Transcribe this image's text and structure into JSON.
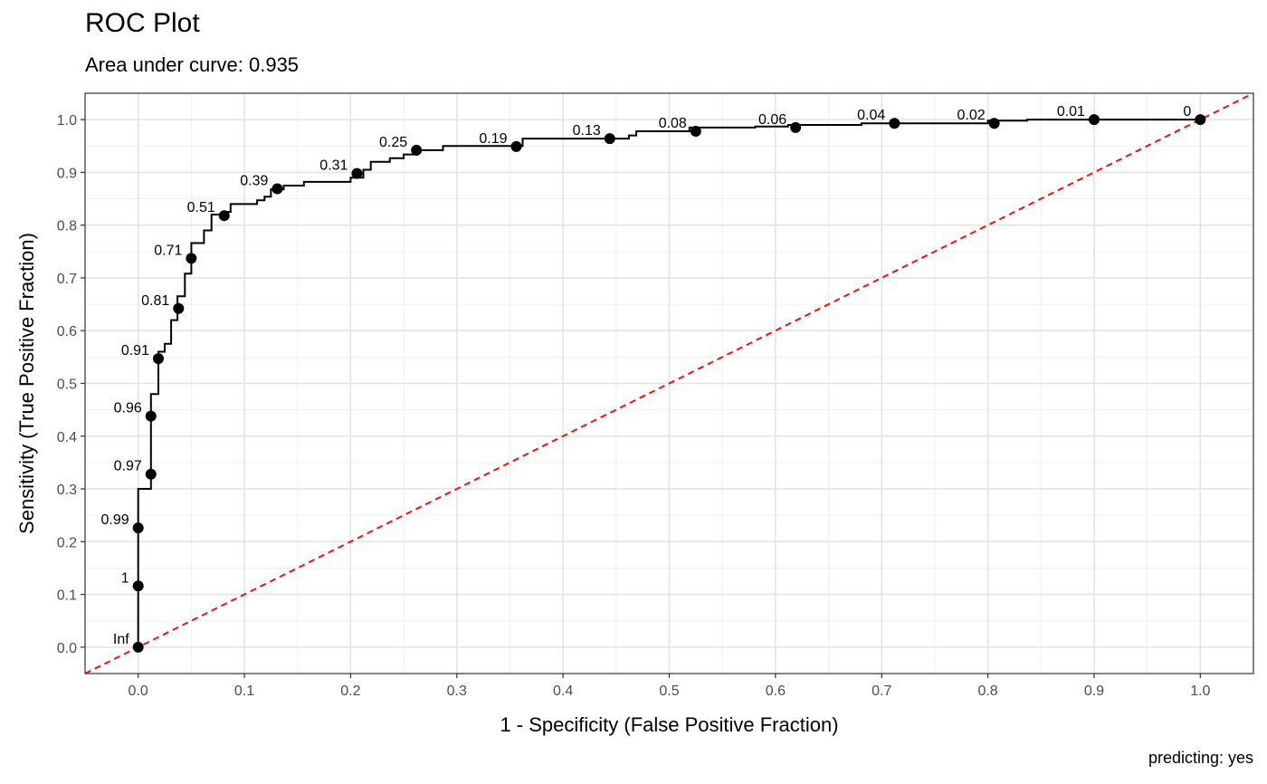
{
  "chart_data": {
    "type": "line",
    "title": "ROC Plot",
    "subtitle": "Area under curve: 0.935",
    "caption": "predicting: yes",
    "xlabel": "1 - Specificity (False Positive Fraction)",
    "ylabel": "Sensitivity (True Positive Fraction)",
    "xlim": [
      -0.05,
      1.05
    ],
    "ylim": [
      -0.05,
      1.05
    ],
    "x_ticks": [
      0.0,
      0.1,
      0.2,
      0.3,
      0.4,
      0.5,
      0.6,
      0.7,
      0.8,
      0.9,
      1.0
    ],
    "x_tick_labels": [
      "0.0",
      "0.1",
      "0.2",
      "0.3",
      "0.4",
      "0.5",
      "0.6",
      "0.7",
      "0.8",
      "0.9",
      "1.0"
    ],
    "y_ticks": [
      0.0,
      0.1,
      0.2,
      0.3,
      0.4,
      0.5,
      0.6,
      0.7,
      0.8,
      0.9,
      1.0
    ],
    "y_tick_labels": [
      "0.0",
      "0.1",
      "0.2",
      "0.3",
      "0.4",
      "0.5",
      "0.6",
      "0.7",
      "0.8",
      "0.9",
      "1.0"
    ],
    "grid": true,
    "reference_line": {
      "x": [
        -0.05,
        1.05
      ],
      "y": [
        -0.05,
        1.05
      ],
      "color": "#ee1111",
      "style": "dashed"
    },
    "roc_curve": {
      "color": "#000000",
      "x": [
        0,
        0,
        0.012,
        0.012,
        0.019,
        0.019,
        0.025,
        0.025,
        0.031,
        0.031,
        0.037,
        0.037,
        0.044,
        0.044,
        0.05,
        0.05,
        0.062,
        0.062,
        0.069,
        0.069,
        0.081,
        0.081,
        0.087,
        0.087,
        0.112,
        0.112,
        0.119,
        0.119,
        0.125,
        0.125,
        0.137,
        0.137,
        0.156,
        0.156,
        0.2,
        0.2,
        0.212,
        0.212,
        0.219,
        0.219,
        0.237,
        0.237,
        0.25,
        0.25,
        0.262,
        0.262,
        0.287,
        0.287,
        0.362,
        0.362,
        0.462,
        0.462,
        0.469,
        0.469,
        0.519,
        0.519,
        0.581,
        0.581,
        0.612,
        0.612,
        0.681,
        0.681,
        0.8,
        0.8,
        0.837,
        0.837,
        1.0
      ],
      "y": [
        0,
        0.3,
        0.3,
        0.48,
        0.48,
        0.56,
        0.56,
        0.575,
        0.575,
        0.62,
        0.62,
        0.665,
        0.665,
        0.708,
        0.708,
        0.766,
        0.766,
        0.79,
        0.79,
        0.82,
        0.82,
        0.825,
        0.825,
        0.84,
        0.84,
        0.847,
        0.847,
        0.854,
        0.854,
        0.868,
        0.868,
        0.875,
        0.875,
        0.882,
        0.882,
        0.89,
        0.89,
        0.905,
        0.905,
        0.92,
        0.92,
        0.927,
        0.927,
        0.934,
        0.934,
        0.942,
        0.942,
        0.95,
        0.95,
        0.964,
        0.964,
        0.97,
        0.97,
        0.978,
        0.978,
        0.985,
        0.985,
        0.987,
        0.987,
        0.99,
        0.99,
        0.993,
        0.993,
        0.998,
        0.998,
        1.0,
        1.0
      ]
    },
    "threshold_points": [
      {
        "label": "Inf",
        "x": 0.0,
        "y": 0.0
      },
      {
        "label": "1",
        "x": 0.0,
        "y": 0.116
      },
      {
        "label": "0.99",
        "x": 0.0,
        "y": 0.226
      },
      {
        "label": "0.97",
        "x": 0.012,
        "y": 0.328
      },
      {
        "label": "0.96",
        "x": 0.012,
        "y": 0.438
      },
      {
        "label": "0.91",
        "x": 0.019,
        "y": 0.547
      },
      {
        "label": "0.81",
        "x": 0.038,
        "y": 0.642
      },
      {
        "label": "0.71",
        "x": 0.05,
        "y": 0.737
      },
      {
        "label": "0.51",
        "x": 0.081,
        "y": 0.818
      },
      {
        "label": "0.39",
        "x": 0.131,
        "y": 0.869
      },
      {
        "label": "0.31",
        "x": 0.206,
        "y": 0.898
      },
      {
        "label": "0.25",
        "x": 0.262,
        "y": 0.942
      },
      {
        "label": "0.19",
        "x": 0.356,
        "y": 0.949
      },
      {
        "label": "0.13",
        "x": 0.444,
        "y": 0.964
      },
      {
        "label": "0.08",
        "x": 0.525,
        "y": 0.978
      },
      {
        "label": "0.06",
        "x": 0.619,
        "y": 0.985
      },
      {
        "label": "0.04",
        "x": 0.712,
        "y": 0.993
      },
      {
        "label": "0.02",
        "x": 0.806,
        "y": 0.993
      },
      {
        "label": "0.01",
        "x": 0.9,
        "y": 1.0
      },
      {
        "label": "0",
        "x": 1.0,
        "y": 1.0
      }
    ]
  }
}
